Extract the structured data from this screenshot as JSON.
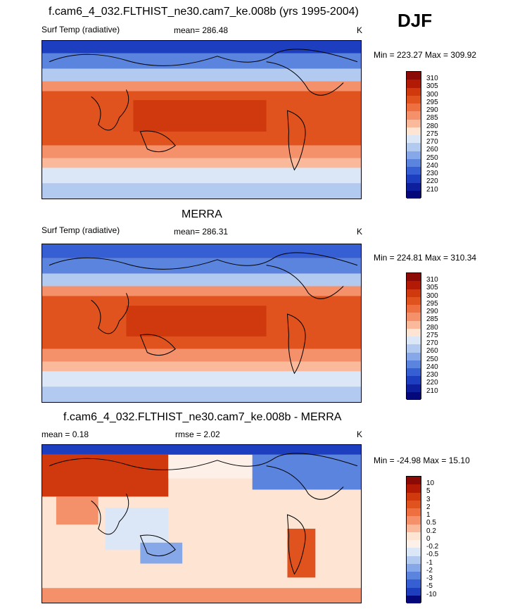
{
  "header": {
    "season": "DJF"
  },
  "panels": [
    {
      "title": "f.cam6_4_032.FLTHIST_ne30.cam7_ke.008b (yrs 1995-2004)",
      "var_label": "Surf Temp (radiative)",
      "mean_label": "mean= 286.48",
      "units": "K",
      "minmax": "Min = 223.27 Max = 309.92",
      "levels": [
        "310",
        "305",
        "300",
        "295",
        "290",
        "285",
        "280",
        "275",
        "270",
        "260",
        "250",
        "240",
        "230",
        "220",
        "210"
      ],
      "colors": [
        "#8b0a05",
        "#b31a05",
        "#d0390d",
        "#e0531e",
        "#ee7040",
        "#f4906a",
        "#f9b99a",
        "#fde4d3",
        "#dbe6f7",
        "#b2c9f0",
        "#86a8e8",
        "#5b84de",
        "#355fd2",
        "#1c3ebf",
        "#0d1f9c",
        "#05087a"
      ]
    },
    {
      "title": "MERRA",
      "var_label": "Surf Temp (radiative)",
      "mean_label": "mean= 286.31",
      "units": "K",
      "minmax": "Min = 224.81 Max = 310.34",
      "levels": [
        "310",
        "305",
        "300",
        "295",
        "290",
        "285",
        "280",
        "275",
        "270",
        "260",
        "250",
        "240",
        "230",
        "220",
        "210"
      ],
      "colors": [
        "#8b0a05",
        "#b31a05",
        "#d0390d",
        "#e0531e",
        "#ee7040",
        "#f4906a",
        "#f9b99a",
        "#fde4d3",
        "#dbe6f7",
        "#b2c9f0",
        "#86a8e8",
        "#5b84de",
        "#355fd2",
        "#1c3ebf",
        "#0d1f9c",
        "#05087a"
      ]
    },
    {
      "title": "f.cam6_4_032.FLTHIST_ne30.cam7_ke.008b - MERRA",
      "mean_label": "mean =   0.18",
      "rmse_label": "rmse =    2.02",
      "units": "K",
      "minmax": "Min = -24.98 Max =  15.10",
      "levels": [
        "10",
        "5",
        "3",
        "2",
        "1",
        "0.5",
        "0.2",
        "0",
        "-0.2",
        "-0.5",
        "-1",
        "-2",
        "-3",
        "-5",
        "-10"
      ],
      "colors": [
        "#8b0a05",
        "#b31a05",
        "#d0390d",
        "#e0531e",
        "#ee7040",
        "#f4906a",
        "#f9b99a",
        "#fde4d3",
        "#fdf0e8",
        "#dbe6f7",
        "#b2c9f0",
        "#86a8e8",
        "#5b84de",
        "#355fd2",
        "#1c3ebf",
        "#05087a"
      ]
    }
  ]
}
